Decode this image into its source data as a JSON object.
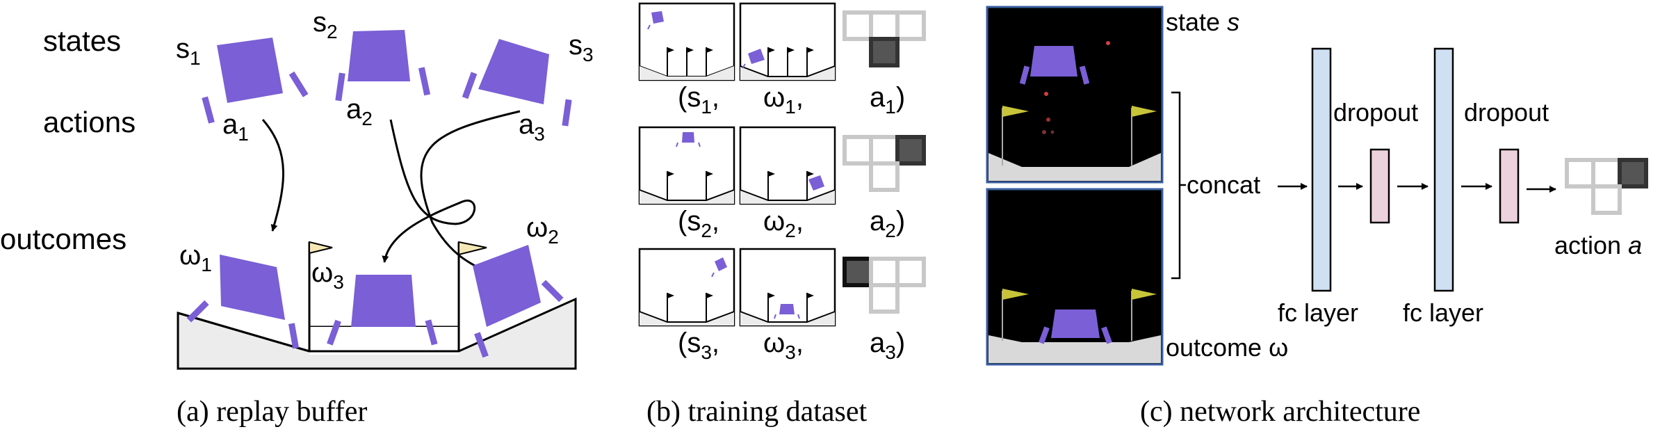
{
  "colors": {
    "lander": "#7a5fd6",
    "ground": "#ececec",
    "flag": "#f6e8b6",
    "fc_layer": "#cfe0f3",
    "dropout": "#ecd2dc",
    "screen_bg": "#000000",
    "screen_border": "#3a5fa0",
    "action_light": "#c8c8c8",
    "action_dark": "#555555",
    "env_flag": "#c8c43a"
  },
  "panel_a": {
    "caption": "(a) replay buffer",
    "row_labels": {
      "states": "states",
      "actions": "actions",
      "outcomes": "outcomes"
    },
    "states": [
      {
        "base": "s",
        "sub": "1"
      },
      {
        "base": "s",
        "sub": "2"
      },
      {
        "base": "s",
        "sub": "3"
      }
    ],
    "actions": [
      {
        "base": "a",
        "sub": "1"
      },
      {
        "base": "a",
        "sub": "2"
      },
      {
        "base": "a",
        "sub": "3"
      }
    ],
    "outcomes": [
      {
        "base": "ω",
        "sub": "1"
      },
      {
        "base": "ω",
        "sub": "3"
      },
      {
        "base": "ω",
        "sub": "2"
      }
    ]
  },
  "panel_b": {
    "caption": "(b) training dataset",
    "rows": [
      {
        "s": {
          "base": "(s",
          "sub": "1",
          "tail": ","
        },
        "w": {
          "base": "ω",
          "sub": "1",
          "tail": ","
        },
        "a": {
          "base": "a",
          "sub": "1",
          "tail": ")"
        },
        "action_icon": "down-arrow-key-icon"
      },
      {
        "s": {
          "base": "(s",
          "sub": "2",
          "tail": ","
        },
        "w": {
          "base": "ω",
          "sub": "2",
          "tail": ","
        },
        "a": {
          "base": "a",
          "sub": "2",
          "tail": ")"
        },
        "action_icon": "right-arrow-key-icon"
      },
      {
        "s": {
          "base": "(s",
          "sub": "3",
          "tail": ","
        },
        "w": {
          "base": "ω",
          "sub": "3",
          "tail": ","
        },
        "a": {
          "base": "a",
          "sub": "3",
          "tail": ")"
        },
        "action_icon": "left-arrow-key-icon"
      }
    ]
  },
  "panel_c": {
    "caption": "(c) network architecture",
    "state_label": {
      "text": "state ",
      "var": "s"
    },
    "outcome_label": "outcome ω",
    "concat": "concat",
    "fc_layer_1": "fc layer",
    "fc_layer_2": "fc layer",
    "dropout_1": "dropout",
    "dropout_2": "dropout",
    "action_label": {
      "text": "action ",
      "var": "a"
    }
  }
}
